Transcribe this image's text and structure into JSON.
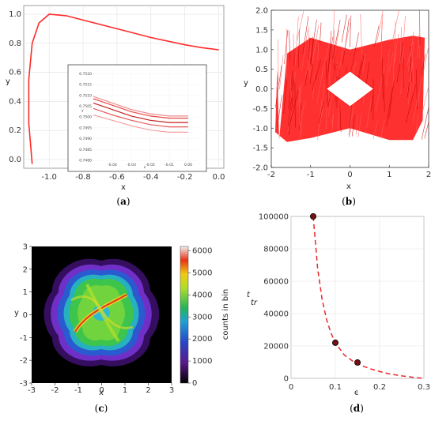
{
  "colors": {
    "curve": "#ff2a2a",
    "panelB": "#ff0000",
    "dashed": "#e8272a",
    "marker": "#7a0e10"
  },
  "chart_data": [
    {
      "type": "line",
      "panel": "(a)",
      "caption_letter": "a",
      "xlabel": "x",
      "ylabel": "y",
      "xlim": [
        -1.15,
        0.03
      ],
      "ylim": [
        -0.06,
        1.06
      ],
      "xticks": [
        "-1.0",
        "-0.8",
        "-0.6",
        "-0.4",
        "-0.2",
        "0.0"
      ],
      "yticks": [
        "0.0",
        "0.2",
        "0.4",
        "0.6",
        "0.8",
        "1.0"
      ],
      "grid": true,
      "series": [
        {
          "x": [
            -1.1,
            -1.12,
            -1.12,
            -1.1,
            -1.06,
            -1.0,
            -0.9,
            -0.8,
            -0.6,
            -0.4,
            -0.2,
            -0.1,
            0.0
          ],
          "y": [
            -0.03,
            0.25,
            0.55,
            0.8,
            0.94,
            1.0,
            0.99,
            0.96,
            0.9,
            0.84,
            0.79,
            0.77,
            0.755
          ]
        }
      ],
      "inset": {
        "xlabel": "x",
        "ylabel": "y",
        "xlim": [
          -0.05,
          0.005
        ],
        "ylim": [
          0.748,
          0.7522
        ],
        "xticks": [
          "-0.04",
          "-0.03",
          "-0.02",
          "-0.01",
          "0.00"
        ],
        "yticks": [
          "0.7520",
          "0.7515",
          "0.7510",
          "0.7505",
          "0.7500",
          "0.7495",
          "0.7490",
          "0.7485",
          "0.7480"
        ],
        "series": [
          {
            "x": [
              -0.05,
              -0.04,
              -0.03,
              -0.02,
              -0.01,
              0.0
            ],
            "y": [
              0.75095,
              0.75065,
              0.75035,
              0.75015,
              0.75005,
              0.75005
            ]
          },
          {
            "x": [
              -0.05,
              -0.04,
              -0.03,
              -0.02,
              -0.01,
              0.0
            ],
            "y": [
              0.75085,
              0.75055,
              0.75025,
              0.75005,
              0.74995,
              0.74995
            ]
          },
          {
            "x": [
              -0.05,
              -0.04,
              -0.03,
              -0.02,
              -0.01,
              0.0
            ],
            "y": [
              0.75065,
              0.75035,
              0.75005,
              0.74985,
              0.74975,
              0.74975
            ]
          },
          {
            "x": [
              -0.05,
              -0.04,
              -0.03,
              -0.02,
              -0.01,
              0.0
            ],
            "y": [
              0.7504,
              0.7501,
              0.74985,
              0.74965,
              0.74955,
              0.74955
            ]
          },
          {
            "x": [
              -0.05,
              -0.04,
              -0.03,
              -0.02,
              -0.01,
              0.0
            ],
            "y": [
              0.7501,
              0.74985,
              0.7496,
              0.7494,
              0.7493,
              0.7493
            ]
          }
        ]
      }
    },
    {
      "type": "line",
      "panel": "(b)",
      "caption_letter": "b",
      "xlabel": "x",
      "ylabel": "y",
      "xlim": [
        -2,
        2
      ],
      "ylim": [
        -2,
        2
      ],
      "xticks": [
        "-2",
        "-1",
        "0",
        "1",
        "2"
      ],
      "yticks": [
        "2.0",
        "1.5",
        "1.0",
        "0.5",
        "0.0",
        "-0.5",
        "-1.0",
        "-1.5",
        "-2.0"
      ],
      "description_series": "dense attractor trajectory with diamond-shaped hole around origin",
      "envelope": {
        "x": [
          -1.8,
          -1.6,
          -1.0,
          0.0,
          1.0,
          1.6,
          1.9,
          1.85,
          1.6,
          1.0,
          0.0,
          -1.0,
          -1.6,
          -1.9,
          -1.85,
          -1.8
        ],
        "y": [
          -1.3,
          0.9,
          1.3,
          1.0,
          1.25,
          1.35,
          1.3,
          -0.8,
          -1.3,
          -1.3,
          -1.0,
          -1.25,
          -1.35,
          -1.1,
          0.5,
          -1.3
        ]
      },
      "hole": {
        "x": [
          0.0,
          0.6,
          0.0,
          -0.6
        ],
        "y": [
          0.45,
          0.0,
          -0.45,
          0.0
        ]
      }
    },
    {
      "type": "heatmap",
      "panel": "(c)",
      "caption_letter": "c",
      "xlabel": "x",
      "ylabel": "y",
      "xlim": [
        -3,
        3
      ],
      "ylim": [
        -3,
        3
      ],
      "xticks": [
        "-3",
        "-2",
        "-1",
        "0",
        "1",
        "2",
        "3"
      ],
      "yticks": [
        "3",
        "2",
        "1",
        "0",
        "-1",
        "-2",
        "-3"
      ],
      "colorbar": {
        "label": "counts in bin",
        "range": [
          0,
          6200
        ],
        "ticks": [
          "6000",
          "5000",
          "4000",
          "3000",
          "2000",
          "1000",
          "0"
        ]
      }
    },
    {
      "type": "scatter",
      "panel": "(d)",
      "caption_letter": "d",
      "xlabel": "ϵ",
      "ylabel": "t",
      "ylabel_sub": "tr",
      "xlim": [
        0,
        0.3
      ],
      "ylim": [
        0,
        100000
      ],
      "xticks": [
        "0",
        "0.1",
        "0.2",
        "0.3"
      ],
      "yticks": [
        "100000",
        "80000",
        "60000",
        "40000",
        "20000",
        "0"
      ],
      "grid": true,
      "points": {
        "x": [
          0.05,
          0.1,
          0.15
        ],
        "y": [
          100000,
          22000,
          9800
        ]
      },
      "fit_curve": {
        "x": [
          0.05,
          0.06,
          0.07,
          0.08,
          0.09,
          0.1,
          0.12,
          0.14,
          0.16,
          0.18,
          0.2,
          0.22,
          0.25,
          0.28,
          0.3
        ],
        "y": [
          100000,
          68000,
          49000,
          36500,
          28000,
          22000,
          14500,
          10500,
          7800,
          5800,
          4200,
          2900,
          1500,
          500,
          0
        ]
      }
    }
  ]
}
